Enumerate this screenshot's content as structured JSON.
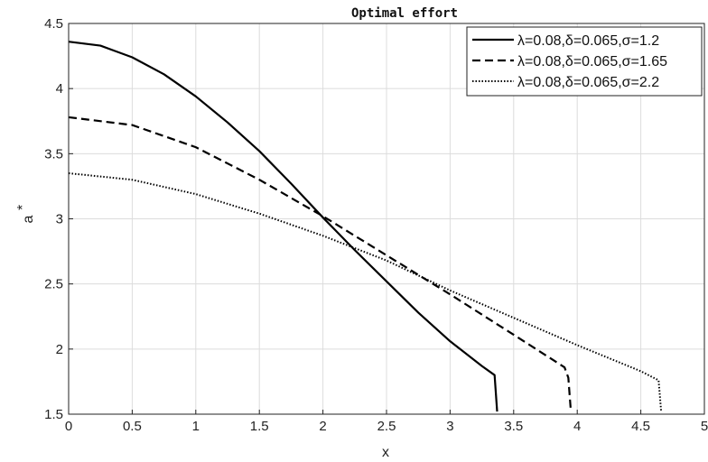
{
  "chart_data": {
    "type": "line",
    "title": "Optimal effort",
    "xlabel": "x",
    "ylabel": "a",
    "ylabel_superscript": "*",
    "xlim": [
      0,
      5
    ],
    "ylim": [
      1.5,
      4.5
    ],
    "xticks": [
      "0",
      "0.5",
      "1",
      "1.5",
      "2",
      "2.5",
      "3",
      "3.5",
      "4",
      "4.5",
      "5"
    ],
    "yticks": [
      "1.5",
      "2",
      "2.5",
      "3",
      "3.5",
      "4",
      "4.5"
    ],
    "grid": true,
    "legend_position": "top-right",
    "series": [
      {
        "name": "λ=0.08,δ=0.065,σ=1.2",
        "style": "solid",
        "color": "#000000",
        "x": [
          0,
          0.25,
          0.5,
          0.75,
          1.0,
          1.25,
          1.5,
          1.75,
          2.0,
          2.25,
          2.5,
          2.75,
          3.0,
          3.25,
          3.35,
          3.37
        ],
        "y": [
          4.36,
          4.33,
          4.24,
          4.11,
          3.94,
          3.74,
          3.52,
          3.27,
          3.01,
          2.76,
          2.52,
          2.28,
          2.06,
          1.87,
          1.8,
          1.52
        ]
      },
      {
        "name": "λ=0.08,δ=0.065,σ=1.65",
        "style": "dashed",
        "color": "#000000",
        "x": [
          0,
          0.5,
          1.0,
          1.5,
          2.0,
          2.5,
          3.0,
          3.5,
          3.9,
          3.93,
          3.95
        ],
        "y": [
          3.78,
          3.72,
          3.55,
          3.3,
          3.02,
          2.72,
          2.42,
          2.11,
          1.86,
          1.78,
          1.52
        ]
      },
      {
        "name": "λ=0.08,δ=0.065,σ=2.2",
        "style": "dotted",
        "color": "#000000",
        "x": [
          0,
          0.5,
          1.0,
          1.5,
          2.0,
          2.5,
          3.0,
          3.5,
          4.0,
          4.5,
          4.64,
          4.66
        ],
        "y": [
          3.35,
          3.3,
          3.19,
          3.04,
          2.87,
          2.68,
          2.45,
          2.24,
          2.03,
          1.83,
          1.76,
          1.52
        ]
      }
    ]
  }
}
